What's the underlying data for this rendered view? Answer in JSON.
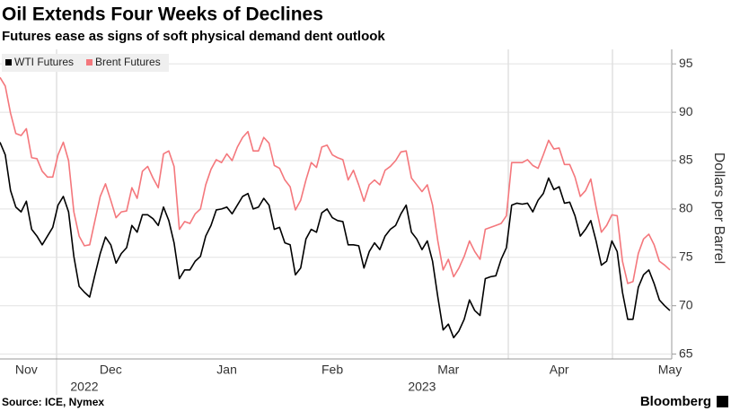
{
  "chart_data": {
    "type": "line",
    "title": "Oil Extends Four Weeks of Declines",
    "subtitle": "Futures ease as signs of soft physical demand dent outlook",
    "y_axis_label": "Dollars per Barrel",
    "source": "Source: ICE, Nymex",
    "brand": "Bloomberg",
    "legend_position": "top-left",
    "grid": true,
    "ylim": [
      64.5,
      96.5
    ],
    "yticks": [
      65,
      70,
      75,
      80,
      85,
      90,
      95
    ],
    "categories": [
      null,
      null,
      null,
      null,
      null,
      "Nov",
      null,
      null,
      null,
      null,
      null,
      null,
      null,
      null,
      null,
      null,
      null,
      null,
      null,
      null,
      null,
      "Dec",
      null,
      null,
      null,
      null,
      null,
      null,
      null,
      null,
      null,
      null,
      null,
      null,
      null,
      null,
      null,
      null,
      null,
      null,
      null,
      null,
      null,
      "Jan",
      null,
      null,
      null,
      null,
      null,
      null,
      null,
      null,
      null,
      null,
      null,
      null,
      null,
      null,
      null,
      null,
      null,
      null,
      null,
      "Feb",
      null,
      null,
      null,
      null,
      null,
      null,
      null,
      null,
      null,
      null,
      null,
      null,
      null,
      null,
      null,
      null,
      null,
      null,
      null,
      null,
      null,
      "Mar",
      null,
      null,
      null,
      null,
      null,
      null,
      null,
      null,
      null,
      null,
      null,
      null,
      null,
      null,
      null,
      null,
      null,
      null,
      null,
      null,
      "Apr",
      null,
      null,
      null,
      null,
      null,
      null,
      null,
      null,
      null,
      null,
      null,
      null,
      null,
      null,
      null,
      null,
      null,
      null,
      null,
      null,
      "May"
    ],
    "years": [
      null,
      null,
      null,
      null,
      null,
      null,
      null,
      null,
      null,
      null,
      null,
      null,
      null,
      null,
      null,
      null,
      "2022",
      null,
      null,
      null,
      null,
      null,
      null,
      null,
      null,
      null,
      null,
      null,
      null,
      null,
      null,
      null,
      null,
      null,
      null,
      null,
      null,
      null,
      null,
      null,
      null,
      null,
      null,
      null,
      null,
      null,
      null,
      null,
      null,
      null,
      null,
      null,
      null,
      null,
      null,
      null,
      null,
      null,
      null,
      null,
      null,
      null,
      null,
      null,
      null,
      null,
      null,
      null,
      null,
      null,
      null,
      null,
      null,
      null,
      null,
      null,
      null,
      null,
      null,
      null,
      "2023",
      null,
      null,
      null,
      null,
      null,
      null,
      null,
      null,
      null,
      null,
      null,
      null,
      null,
      null,
      null,
      null,
      null,
      null,
      null,
      null,
      null,
      null,
      null,
      null,
      null,
      null,
      null,
      null,
      null,
      null,
      null,
      null,
      null,
      null,
      null,
      null,
      null,
      null,
      null,
      null,
      null,
      null,
      null,
      null,
      null,
      null,
      null
    ],
    "series": [
      {
        "name": "WTI Futures",
        "color": "#000000",
        "values": [
          86.9,
          85.6,
          81.9,
          80.2,
          79.7,
          80.8,
          77.9,
          77.2,
          76.3,
          77.2,
          78.1,
          80.4,
          81.3,
          79.7,
          75.1,
          72.0,
          71.4,
          70.9,
          73.2,
          75.4,
          77.1,
          76.3,
          74.4,
          75.4,
          76.0,
          78.3,
          77.6,
          79.4,
          79.4,
          79.0,
          78.3,
          80.2,
          78.8,
          76.5,
          72.8,
          73.7,
          73.7,
          74.6,
          75.1,
          77.2,
          78.3,
          79.9,
          80.0,
          80.2,
          79.5,
          80.4,
          81.3,
          81.6,
          80.0,
          80.2,
          81.1,
          80.4,
          77.9,
          78.1,
          76.5,
          76.3,
          73.2,
          73.9,
          76.9,
          77.9,
          77.6,
          79.6,
          80.0,
          79.1,
          78.8,
          78.7,
          76.3,
          76.3,
          76.2,
          73.9,
          75.6,
          76.5,
          75.8,
          77.2,
          77.9,
          78.3,
          79.5,
          80.4,
          77.6,
          76.9,
          75.8,
          76.7,
          74.6,
          70.9,
          67.5,
          68.1,
          66.7,
          67.4,
          68.6,
          70.6,
          69.5,
          69.0,
          72.8,
          73.0,
          73.1,
          74.8,
          76.0,
          80.4,
          80.6,
          80.5,
          80.6,
          79.7,
          80.9,
          81.6,
          83.2,
          82.0,
          82.3,
          80.6,
          80.7,
          79.3,
          77.2,
          77.9,
          78.8,
          76.7,
          74.2,
          74.6,
          76.7,
          75.6,
          71.4,
          68.6,
          68.6,
          71.9,
          73.2,
          73.7,
          72.3,
          70.6,
          70.0,
          69.5
        ]
      },
      {
        "name": "Brent Futures",
        "color": "#f4777c",
        "values": [
          93.6,
          92.7,
          89.9,
          87.8,
          87.6,
          88.3,
          85.3,
          85.2,
          83.9,
          83.3,
          83.3,
          85.6,
          86.9,
          85.0,
          79.7,
          77.2,
          76.2,
          76.3,
          78.8,
          81.3,
          82.6,
          80.9,
          79.1,
          79.7,
          79.8,
          82.2,
          81.1,
          83.9,
          84.4,
          83.2,
          82.2,
          85.7,
          86.0,
          84.4,
          77.9,
          78.7,
          78.5,
          79.5,
          80.0,
          82.5,
          84.1,
          85.1,
          84.8,
          85.7,
          85.0,
          86.4,
          87.4,
          88.0,
          86.0,
          86.0,
          87.4,
          86.8,
          84.5,
          84.2,
          83.0,
          82.3,
          79.9,
          80.9,
          83.0,
          84.8,
          84.3,
          86.4,
          86.6,
          85.6,
          85.3,
          85.1,
          83.0,
          84.0,
          82.5,
          80.8,
          82.5,
          83.0,
          82.5,
          84.0,
          84.4,
          85.0,
          85.9,
          86.0,
          83.2,
          82.5,
          81.8,
          82.5,
          80.4,
          76.7,
          73.7,
          74.8,
          73.0,
          73.9,
          75.1,
          76.7,
          75.6,
          74.8,
          77.9,
          78.1,
          78.3,
          78.5,
          79.3,
          84.8,
          84.8,
          84.8,
          85.1,
          84.5,
          84.2,
          85.6,
          87.1,
          86.2,
          86.3,
          84.6,
          84.6,
          83.3,
          81.3,
          81.9,
          83.1,
          80.2,
          77.6,
          78.3,
          79.4,
          79.3,
          74.6,
          72.3,
          72.5,
          75.4,
          76.9,
          77.4,
          76.3,
          74.6,
          74.2,
          73.7
        ]
      }
    ]
  }
}
